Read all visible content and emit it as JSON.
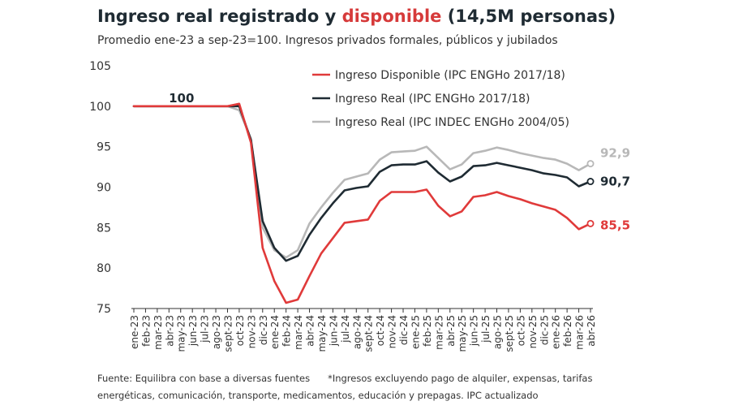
{
  "title": {
    "part1": "Ingreso real registrado y ",
    "highlight": "disponible",
    "part2": " (14,5M personas)"
  },
  "subtitle": "Promedio ene-23 a sep-23=100. Ingresos privados formales, públicos y jubilados",
  "footer": {
    "source": "Fuente: Equilibra con base a diversas fuentes",
    "note_line1": "*Ingresos excluyendo pago de alquiler, expensas, tarifas",
    "note_line2": "energéticas, comunicación, transporte, medicamentos, educación y prepagas. IPC actualizado"
  },
  "chart_data": {
    "type": "line",
    "ylim": [
      75,
      105
    ],
    "yticks": [
      "75",
      "80",
      "85",
      "90",
      "95",
      "100",
      "105"
    ],
    "grid": false,
    "legend_position": "top-right",
    "annotation_base": "100",
    "categories": [
      "ene-23",
      "feb-23",
      "mar-23",
      "abr-23",
      "may-23",
      "jun-23",
      "jul-23",
      "ago-23",
      "sept-23",
      "oct-23",
      "nov-23",
      "dic-23",
      "ene-24",
      "feb-24",
      "mar-24",
      "abr-24",
      "may-24",
      "jun-24",
      "jul-24",
      "ago-24",
      "sept-24",
      "oct-24",
      "nov-24",
      "dic-24",
      "ene-25",
      "feb-25",
      "mar-25",
      "abr-25",
      "may-25",
      "jun-25",
      "jul-25",
      "ago-25",
      "sept-25",
      "oct-25",
      "nov-25",
      "dic-25",
      "ene-26",
      "feb-26",
      "mar-26",
      "abr-26"
    ],
    "series": [
      {
        "name": "Ingreso Real (IPC INDEC ENGHo 2004/05)",
        "color": "#b8b8b8",
        "end_label": "92,9",
        "values": [
          100,
          100,
          100,
          100,
          100,
          100,
          100,
          100,
          100,
          99.5,
          96.0,
          85.0,
          82.2,
          81.3,
          82.2,
          85.5,
          87.5,
          89.3,
          90.9,
          91.3,
          91.7,
          93.4,
          94.3,
          94.4,
          94.5,
          95.0,
          93.6,
          92.2,
          92.8,
          94.2,
          94.5,
          94.9,
          94.6,
          94.2,
          93.9,
          93.6,
          93.4,
          92.9,
          92.1,
          92.9
        ]
      },
      {
        "name": "Ingreso Real (IPC ENGHo 2017/18)",
        "color": "#1f2b33",
        "end_label": "90,7",
        "values": [
          100,
          100,
          100,
          100,
          100,
          100,
          100,
          100,
          100,
          100.0,
          95.8,
          85.8,
          82.5,
          80.9,
          81.5,
          84.1,
          86.2,
          88.0,
          89.6,
          89.9,
          90.1,
          91.9,
          92.7,
          92.8,
          92.8,
          93.2,
          91.8,
          90.7,
          91.3,
          92.6,
          92.7,
          93.0,
          92.7,
          92.4,
          92.1,
          91.7,
          91.5,
          91.2,
          90.1,
          90.7
        ]
      },
      {
        "name": "Ingreso Disponible (IPC ENGHo 2017/18)",
        "color": "#e03a3a",
        "end_label": "85,5",
        "values": [
          100,
          100,
          100,
          100,
          100,
          100,
          100,
          100,
          100,
          100.3,
          95.5,
          82.5,
          78.4,
          75.7,
          76.1,
          79.0,
          81.8,
          83.7,
          85.6,
          85.8,
          86.0,
          88.3,
          89.4,
          89.4,
          89.4,
          89.7,
          87.7,
          86.4,
          87.0,
          88.8,
          89.0,
          89.4,
          88.9,
          88.5,
          88.0,
          87.6,
          87.2,
          86.2,
          84.8,
          85.5
        ]
      }
    ]
  }
}
